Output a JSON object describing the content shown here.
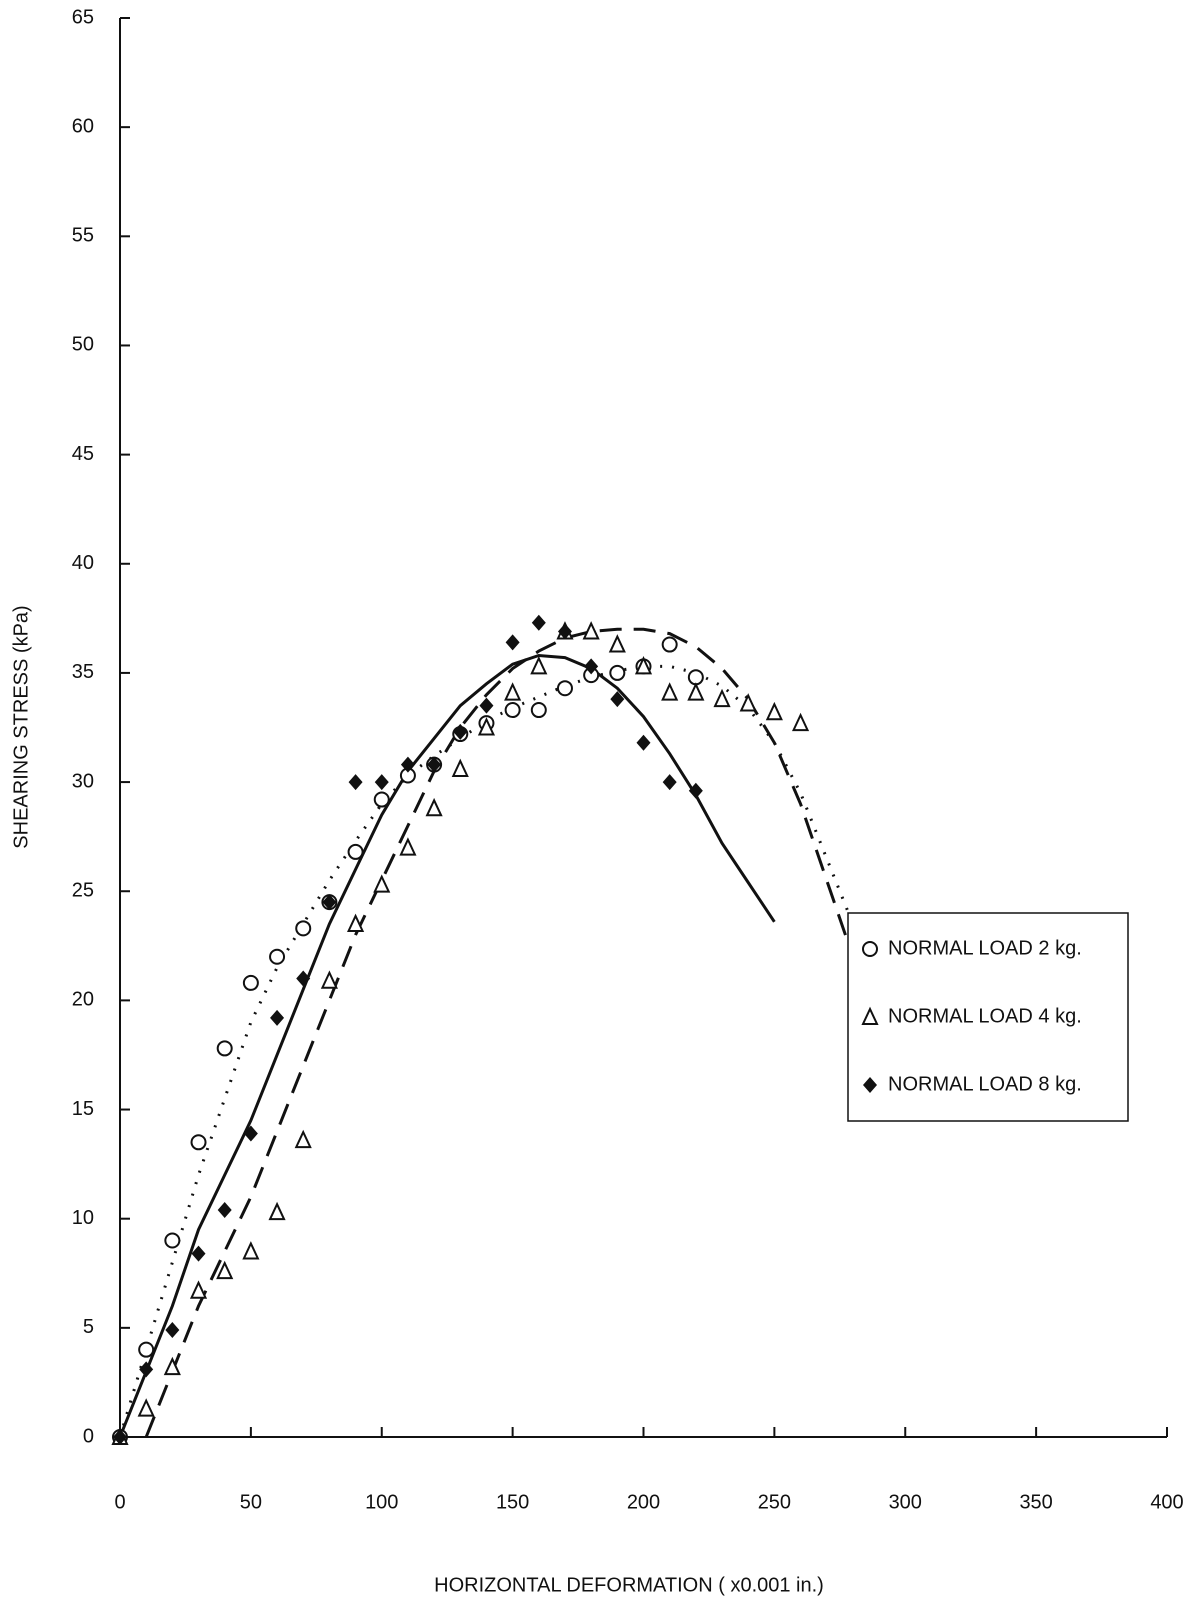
{
  "chart_data": {
    "type": "scatter",
    "x_label": "HORIZONTAL DEFORMATION ( x0.001 in.)",
    "y_label": "SHEARING STRESS (kPa)",
    "xlim": [
      0,
      400
    ],
    "xticks": [
      0,
      50,
      100,
      150,
      200,
      250,
      300,
      350,
      400
    ],
    "ylim": [
      0,
      65
    ],
    "yticks": [
      0,
      5,
      10,
      15,
      20,
      25,
      30,
      35,
      40,
      45,
      50,
      55,
      60,
      65
    ],
    "legend": "right",
    "series": [
      {
        "name": "NORMAL LOAD 2 kg.",
        "marker": "circle-open",
        "color": "#111111",
        "x": [
          0,
          10,
          20,
          30,
          40,
          50,
          60,
          70,
          80,
          90,
          100,
          110,
          120,
          130,
          140,
          150,
          160,
          170,
          180,
          190,
          200,
          210,
          220
        ],
        "values": [
          0,
          4,
          9,
          13.5,
          17.8,
          20.8,
          22,
          23.3,
          24.5,
          26.8,
          29.2,
          30.3,
          30.8,
          32.2,
          32.7,
          33.3,
          33.3,
          34.3,
          34.9,
          35,
          35.3,
          36.3,
          34.8
        ]
      },
      {
        "name": "NORMAL LOAD 4 kg.",
        "marker": "triangle-open",
        "color": "#111111",
        "x": [
          0,
          10,
          20,
          30,
          40,
          50,
          60,
          70,
          80,
          90,
          100,
          110,
          120,
          130,
          140,
          150,
          160,
          170,
          180,
          190,
          200,
          210,
          220,
          230,
          240,
          250,
          260
        ],
        "values": [
          0,
          1.3,
          3.2,
          6.7,
          7.6,
          8.5,
          10.3,
          13.6,
          20.9,
          23.5,
          25.3,
          27,
          28.8,
          30.6,
          32.5,
          34.1,
          35.3,
          36.9,
          36.9,
          36.3,
          35.3,
          34.1,
          34.1,
          33.8,
          33.6,
          33.2,
          32.7
        ]
      },
      {
        "name": "NORMAL LOAD 8 kg.",
        "marker": "diamond-filled",
        "color": "#111111",
        "x": [
          0,
          10,
          20,
          30,
          40,
          50,
          60,
          70,
          80,
          90,
          100,
          110,
          120,
          130,
          140,
          150,
          160,
          170,
          180,
          190,
          200,
          210,
          220
        ],
        "values": [
          0,
          3.1,
          4.9,
          8.4,
          10.4,
          13.9,
          19.2,
          21,
          24.5,
          30,
          30,
          30.8,
          30.8,
          32.3,
          33.5,
          36.4,
          37.3,
          36.9,
          35.3,
          33.8,
          31.8,
          30,
          29.6
        ]
      }
    ],
    "fits": [
      {
        "dash": "2 10",
        "color": "#111111",
        "x": [
          0,
          10,
          20,
          30,
          40,
          50,
          60,
          70,
          80,
          90,
          100,
          110,
          120,
          130,
          140,
          150,
          160,
          170,
          180,
          190,
          200,
          210,
          220,
          230,
          240,
          250,
          260,
          270,
          280
        ],
        "values": [
          0,
          4,
          8,
          12,
          15.5,
          19,
          21.5,
          23.5,
          25.5,
          27.3,
          29,
          30.3,
          31.2,
          32,
          32.8,
          33.4,
          33.9,
          34.4,
          34.8,
          35.1,
          35.3,
          35.3,
          35,
          34.4,
          33.4,
          31.8,
          29.5,
          26.5,
          23.5
        ]
      },
      {
        "dash": "22 12",
        "color": "#111111",
        "x": [
          10,
          20,
          30,
          40,
          50,
          60,
          70,
          80,
          90,
          100,
          110,
          120,
          130,
          140,
          150,
          160,
          170,
          180,
          190,
          200,
          210,
          220,
          230,
          240,
          250,
          260,
          270,
          280
        ],
        "values": [
          0,
          3,
          6,
          8.5,
          11,
          14,
          17,
          20,
          23,
          25.5,
          28,
          30.5,
          32.5,
          34,
          35.2,
          36,
          36.6,
          36.9,
          37,
          37,
          36.8,
          36.2,
          35.2,
          33.8,
          31.8,
          29,
          25.5,
          22
        ]
      },
      {
        "dash": "none",
        "color": "#111111",
        "x": [
          0,
          10,
          20,
          30,
          40,
          50,
          60,
          70,
          80,
          90,
          100,
          110,
          120,
          130,
          140,
          150,
          160,
          170,
          180,
          190,
          200,
          210,
          220,
          230,
          240,
          250
        ],
        "values": [
          0,
          3,
          6,
          9.5,
          12,
          14.5,
          17.5,
          20.5,
          23.5,
          26,
          28.5,
          30.5,
          32,
          33.5,
          34.5,
          35.4,
          35.8,
          35.7,
          35.2,
          34.3,
          33,
          31.3,
          29.4,
          27.2,
          25.4,
          23.6
        ]
      }
    ]
  }
}
